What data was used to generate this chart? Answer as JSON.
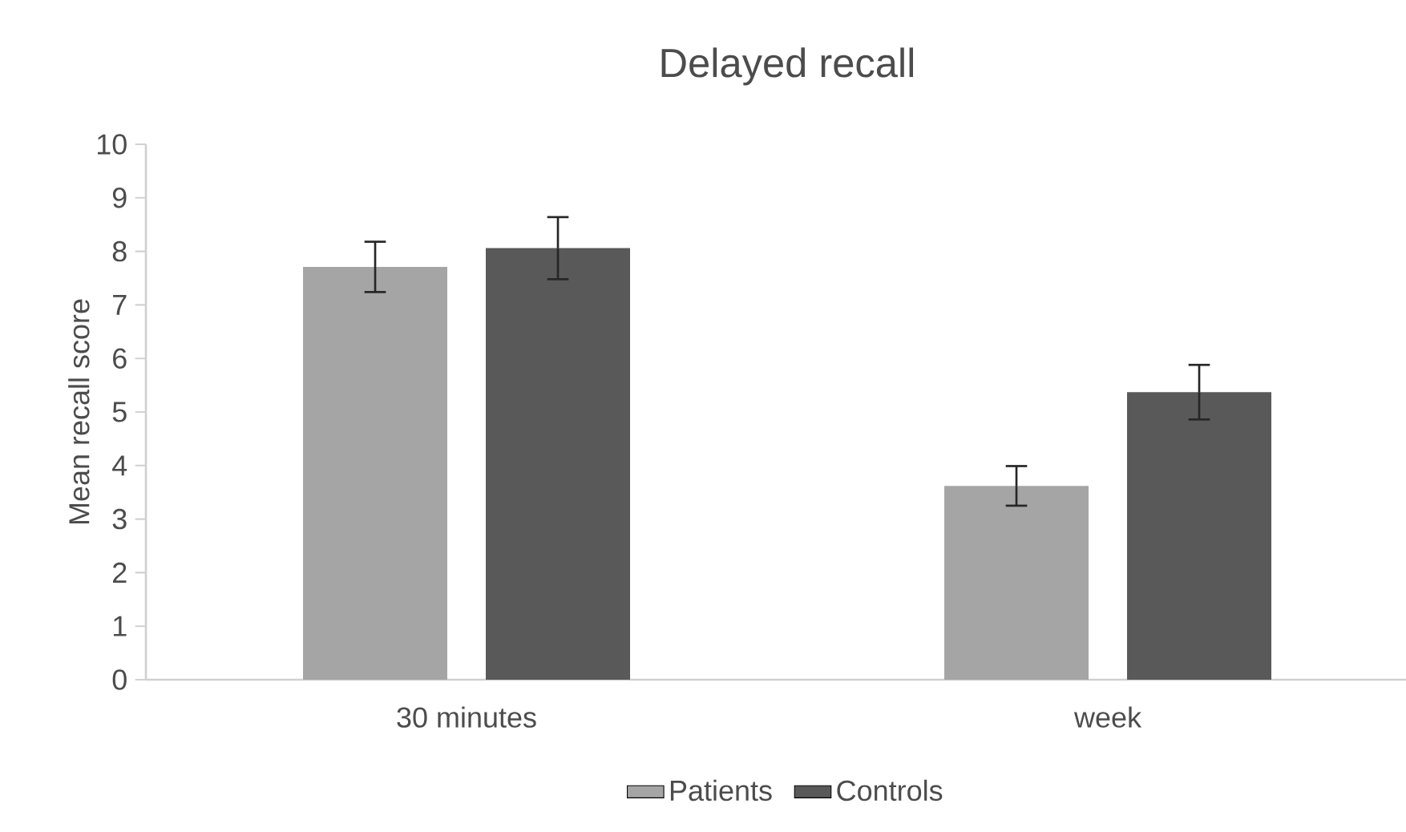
{
  "chart_data": {
    "type": "bar",
    "title": "Delayed recall",
    "ylabel": "Mean recall score",
    "categories": [
      "30 minutes",
      "week"
    ],
    "series": [
      {
        "name": "Patients",
        "color": "#a5a5a5",
        "values": [
          7.71,
          3.62
        ],
        "errors": [
          0.47,
          0.37
        ]
      },
      {
        "name": "Controls",
        "color": "#595959",
        "values": [
          8.06,
          5.37
        ],
        "errors": [
          0.58,
          0.51
        ]
      }
    ],
    "ylim": [
      0,
      10
    ],
    "yticks": [
      0,
      1,
      2,
      3,
      4,
      5,
      6,
      7,
      8,
      9,
      10
    ],
    "grid": false,
    "legend": "bottom"
  }
}
